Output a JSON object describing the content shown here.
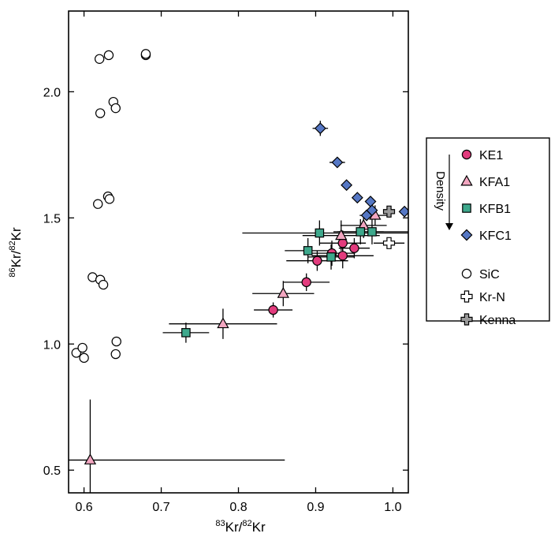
{
  "chart_data": {
    "type": "scatter",
    "xlabel": {
      "pre": "83",
      "main1": "Kr/",
      "sup2": "82",
      "main2": "Kr"
    },
    "ylabel": {
      "pre": "86",
      "main1": "Kr/",
      "sup2": "82",
      "main2": "Kr"
    },
    "xlim": [
      0.58,
      1.02
    ],
    "ylim": [
      0.41,
      2.32
    ],
    "xticks": [
      0.6,
      0.7,
      0.8,
      0.9,
      1.0
    ],
    "xtick_labels": [
      "0.6",
      "0.7",
      "0.8",
      "0.9",
      "1.0"
    ],
    "yticks": [
      0.5,
      1.0,
      1.5,
      2.0
    ],
    "ytick_labels": [
      "0.5",
      "1.0",
      "1.5",
      "2.0"
    ],
    "density_label": "Density",
    "colors": {
      "KE1": "#e23b7d",
      "KFA1": "#f2a6c0",
      "KFB1": "#3ea88c",
      "KFC1": "#5577c4",
      "SiC": "#ffffff",
      "Kr-N": "#ffffff",
      "Kenna": "#9a9a9a"
    },
    "series": [
      {
        "name": "KE1",
        "marker": "circle",
        "points": [
          {
            "x": 0.845,
            "y": 1.135,
            "xerr": 0.025,
            "yerr": 0.03
          },
          {
            "x": 0.888,
            "y": 1.245,
            "xerr": 0.03,
            "yerr": 0.035
          },
          {
            "x": 0.902,
            "y": 1.33,
            "xerr": 0.04,
            "yerr": 0.04
          },
          {
            "x": 0.921,
            "y": 1.36,
            "xerr": 0.03,
            "yerr": 0.05
          },
          {
            "x": 0.935,
            "y": 1.4,
            "xerr": 0.03,
            "yerr": 0.05
          },
          {
            "x": 0.935,
            "y": 1.35,
            "xerr": 0.04,
            "yerr": 0.05
          },
          {
            "x": 0.95,
            "y": 1.38,
            "xerr": 0.02,
            "yerr": 0.04
          }
        ]
      },
      {
        "name": "KFA1",
        "marker": "triangle",
        "points": [
          {
            "x": 0.608,
            "y": 0.54,
            "xerr_low": 0.03,
            "xerr_high": 0.252,
            "yerr_low": 0.15,
            "yerr_high": 0.24
          },
          {
            "x": 0.78,
            "y": 1.08,
            "xerr": 0.07,
            "yerr": 0.06
          },
          {
            "x": 0.858,
            "y": 1.2,
            "xerr": 0.04,
            "yerr": 0.05
          },
          {
            "x": 0.933,
            "y": 1.43,
            "xerr": 0.05,
            "yerr": 0.06
          },
          {
            "x": 0.962,
            "y": 1.47,
            "xerr": 0.03,
            "yerr": 0.05
          },
          {
            "x": 0.977,
            "y": 1.51,
            "xerr": 0.02,
            "yerr": 0.04
          }
        ]
      },
      {
        "name": "KFB1",
        "marker": "square",
        "points": [
          {
            "x": 0.732,
            "y": 1.045,
            "xerr": 0.03,
            "yerr": 0.04
          },
          {
            "x": 0.89,
            "y": 1.37,
            "xerr": 0.03,
            "yerr": 0.05
          },
          {
            "x": 0.905,
            "y": 1.44,
            "xerr_low": 0.1,
            "xerr_high": 0.115,
            "yerr": 0.05
          },
          {
            "x": 0.92,
            "y": 1.345,
            "xerr": 0.03,
            "yerr": 0.05
          },
          {
            "x": 0.958,
            "y": 1.445,
            "xerr": 0.03,
            "yerr": 0.05
          },
          {
            "x": 0.973,
            "y": 1.445,
            "xerr": 0.05,
            "yerr": 0.05
          }
        ]
      },
      {
        "name": "KFC1",
        "marker": "diamond",
        "points": [
          {
            "x": 0.906,
            "y": 1.855,
            "xerr": 0.01,
            "yerr": 0.03
          },
          {
            "x": 0.928,
            "y": 1.72,
            "xerr": 0.01,
            "yerr": 0.02
          },
          {
            "x": 0.94,
            "y": 1.63,
            "xerr": 0.005,
            "yerr": 0.015
          },
          {
            "x": 0.954,
            "y": 1.58,
            "xerr": 0.005,
            "yerr": 0.015
          },
          {
            "x": 0.966,
            "y": 1.51,
            "xerr": 0.005,
            "yerr": 0.015
          },
          {
            "x": 0.971,
            "y": 1.565,
            "xerr": 0.005,
            "yerr": 0.015
          },
          {
            "x": 0.973,
            "y": 1.53,
            "xerr": 0.005,
            "yerr": 0.015
          },
          {
            "x": 1.015,
            "y": 1.525,
            "xerr": 0.005,
            "yerr": 0.015
          }
        ]
      },
      {
        "name": "SiC",
        "marker": "circle",
        "points": [
          {
            "x": 0.62,
            "y": 2.13
          },
          {
            "x": 0.632,
            "y": 2.145
          },
          {
            "x": 0.68,
            "y": 2.145
          },
          {
            "x": 0.68,
            "y": 2.15
          },
          {
            "x": 0.621,
            "y": 1.915
          },
          {
            "x": 0.638,
            "y": 1.96
          },
          {
            "x": 0.641,
            "y": 1.935
          },
          {
            "x": 0.631,
            "y": 1.585
          },
          {
            "x": 0.633,
            "y": 1.575
          },
          {
            "x": 0.618,
            "y": 1.555
          },
          {
            "x": 0.611,
            "y": 1.265
          },
          {
            "x": 0.621,
            "y": 1.255
          },
          {
            "x": 0.625,
            "y": 1.235
          },
          {
            "x": 0.642,
            "y": 1.01
          },
          {
            "x": 0.641,
            "y": 0.96
          },
          {
            "x": 0.59,
            "y": 0.965
          },
          {
            "x": 0.598,
            "y": 0.985
          },
          {
            "x": 0.6,
            "y": 0.945
          }
        ]
      },
      {
        "name": "Kr-N",
        "marker": "cross",
        "points": [
          {
            "x": 0.995,
            "y": 1.4,
            "xerr": 0.02,
            "yerr": 0.02
          }
        ]
      },
      {
        "name": "Kenna",
        "marker": "cross",
        "points": [
          {
            "x": 0.995,
            "y": 1.525
          }
        ]
      }
    ],
    "legend": {
      "placement": "right",
      "entries": [
        {
          "name": "KE1",
          "marker": "circle"
        },
        {
          "name": "KFA1",
          "marker": "triangle"
        },
        {
          "name": "KFB1",
          "marker": "square"
        },
        {
          "name": "KFC1",
          "marker": "diamond"
        },
        {
          "name": "SiC",
          "marker": "circle"
        },
        {
          "name": "Kr-N",
          "marker": "cross"
        },
        {
          "name": "Kenna",
          "marker": "cross"
        }
      ]
    }
  }
}
